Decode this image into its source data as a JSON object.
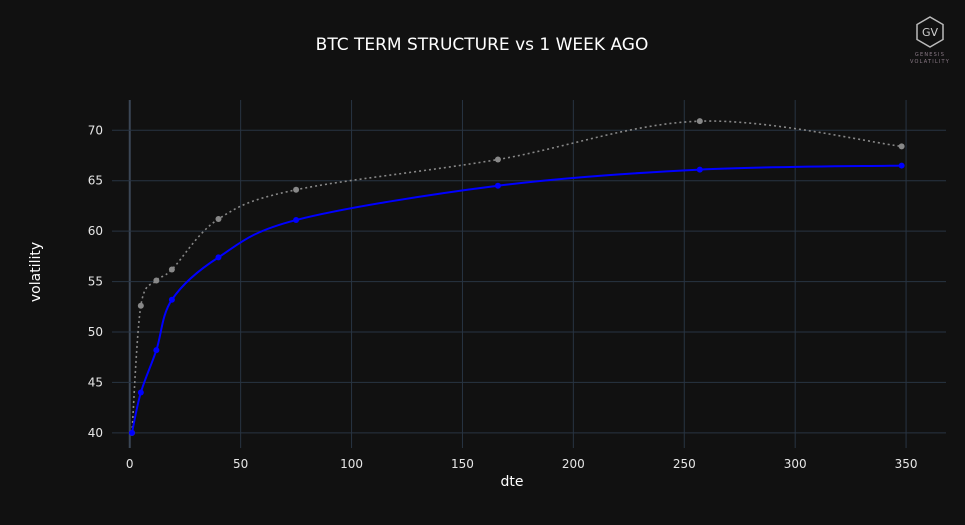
{
  "chart_data": {
    "type": "line",
    "title": "BTC TERM STRUCTURE vs 1 WEEK AGO",
    "xlabel": "dte",
    "ylabel": "volatility",
    "xlim": [
      -8,
      368
    ],
    "ylim": [
      38.5,
      73
    ],
    "x_ticks": [
      0,
      50,
      100,
      150,
      200,
      250,
      300,
      350
    ],
    "y_ticks": [
      40,
      45,
      50,
      55,
      60,
      65,
      70
    ],
    "grid": true,
    "series": [
      {
        "color": "#888888",
        "style": "dotted",
        "x": [
          1,
          5,
          12,
          19,
          40,
          75,
          166,
          257,
          348
        ],
        "values": [
          40.0,
          52.6,
          55.1,
          56.2,
          61.2,
          64.1,
          67.1,
          70.9,
          68.4
        ]
      },
      {
        "color": "#0000ff",
        "style": "solid",
        "x": [
          1,
          5,
          12,
          19,
          40,
          75,
          166,
          257,
          348
        ],
        "values": [
          40.0,
          44.0,
          48.2,
          53.2,
          57.4,
          61.1,
          64.5,
          66.1,
          66.5
        ]
      }
    ]
  },
  "logo": {
    "monogram": "GV",
    "line1": "GENESIS",
    "line2": "VOLATILITY"
  },
  "colors": {
    "background": "#111111",
    "grid": "#283442",
    "text": "#ffffff"
  }
}
